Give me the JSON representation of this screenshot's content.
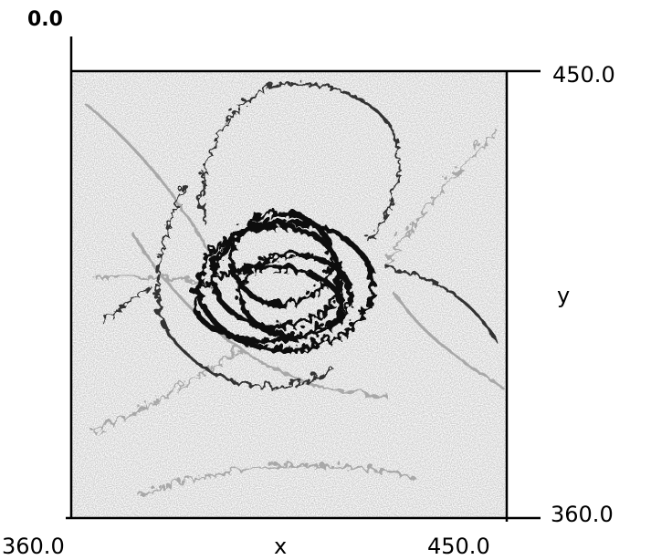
{
  "plot": {
    "corner_label": "0.0",
    "y_axis": {
      "label": "y",
      "top": "450.0",
      "bottom": "360.0"
    },
    "x_axis": {
      "label": "x",
      "left": "360.0",
      "right": "450.0"
    }
  }
}
